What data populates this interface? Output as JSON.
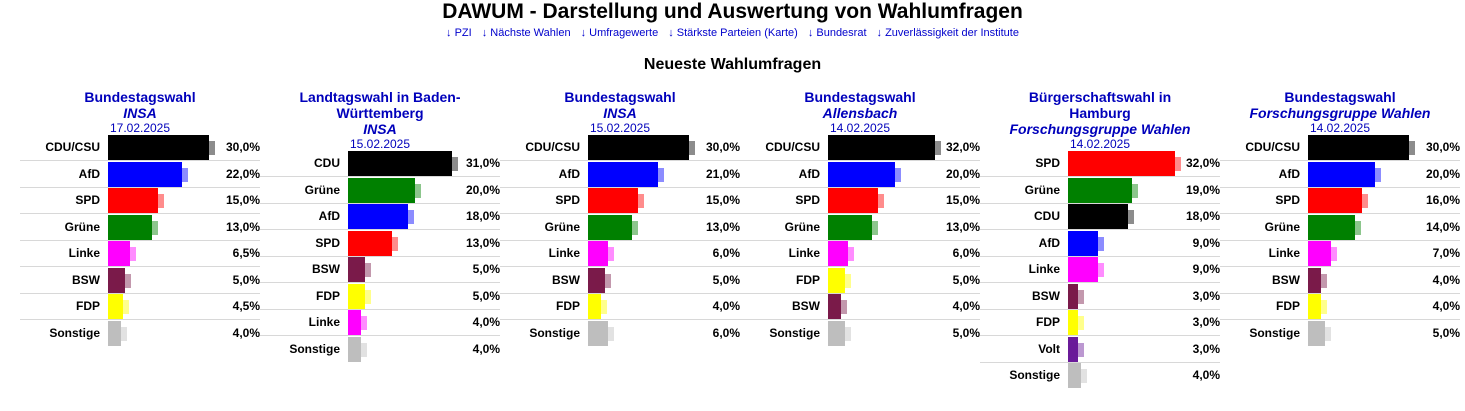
{
  "header": {
    "title": "DAWUM - Darstellung und Auswertung von Wahlumfragen"
  },
  "nav": [
    "↓ PZI",
    "↓ Nächste Wahlen",
    "↓ Umfragewerte",
    "↓ Stärkste Parteien (Karte)",
    "↓ Bundesrat",
    "↓ Zuverlässigkeit der Institute"
  ],
  "section_title": "Neueste Wahlumfragen",
  "colors": {
    "CDU/CSU": "#000000",
    "CDU": "#000000",
    "AfD": "#0000ff",
    "SPD": "#ff0000",
    "Grüne": "#008000",
    "Linke": "#ff00ff",
    "BSW": "#7a1a4a",
    "FDP": "#ffff00",
    "Volt": "#6a1b9a",
    "Sonstige": "#bebebe",
    "link": "#0000cc",
    "title": "#0000bb"
  },
  "polls": [
    {
      "title": "Bundestagswahl",
      "institute": "INSA",
      "date": "17.02.2025",
      "results": [
        {
          "party": "CDU/CSU",
          "value": "30,0%",
          "pct": 30.0
        },
        {
          "party": "AfD",
          "value": "22,0%",
          "pct": 22.0
        },
        {
          "party": "SPD",
          "value": "15,0%",
          "pct": 15.0
        },
        {
          "party": "Grüne",
          "value": "13,0%",
          "pct": 13.0
        },
        {
          "party": "Linke",
          "value": "6,5%",
          "pct": 6.5
        },
        {
          "party": "BSW",
          "value": "5,0%",
          "pct": 5.0
        },
        {
          "party": "FDP",
          "value": "4,5%",
          "pct": 4.5
        },
        {
          "party": "Sonstige",
          "value": "4,0%",
          "pct": 4.0
        }
      ]
    },
    {
      "title": "Landtagswahl in Baden-Württemberg",
      "institute": "INSA",
      "date": "15.02.2025",
      "results": [
        {
          "party": "CDU",
          "value": "31,0%",
          "pct": 31.0
        },
        {
          "party": "Grüne",
          "value": "20,0%",
          "pct": 20.0
        },
        {
          "party": "AfD",
          "value": "18,0%",
          "pct": 18.0
        },
        {
          "party": "SPD",
          "value": "13,0%",
          "pct": 13.0
        },
        {
          "party": "BSW",
          "value": "5,0%",
          "pct": 5.0
        },
        {
          "party": "FDP",
          "value": "5,0%",
          "pct": 5.0
        },
        {
          "party": "Linke",
          "value": "4,0%",
          "pct": 4.0
        },
        {
          "party": "Sonstige",
          "value": "4,0%",
          "pct": 4.0
        }
      ]
    },
    {
      "title": "Bundestagswahl",
      "institute": "INSA",
      "date": "15.02.2025",
      "results": [
        {
          "party": "CDU/CSU",
          "value": "30,0%",
          "pct": 30.0
        },
        {
          "party": "AfD",
          "value": "21,0%",
          "pct": 21.0
        },
        {
          "party": "SPD",
          "value": "15,0%",
          "pct": 15.0
        },
        {
          "party": "Grüne",
          "value": "13,0%",
          "pct": 13.0
        },
        {
          "party": "Linke",
          "value": "6,0%",
          "pct": 6.0
        },
        {
          "party": "BSW",
          "value": "5,0%",
          "pct": 5.0
        },
        {
          "party": "FDP",
          "value": "4,0%",
          "pct": 4.0
        },
        {
          "party": "Sonstige",
          "value": "6,0%",
          "pct": 6.0
        }
      ]
    },
    {
      "title": "Bundestagswahl",
      "institute": "Allensbach",
      "date": "14.02.2025",
      "results": [
        {
          "party": "CDU/CSU",
          "value": "32,0%",
          "pct": 32.0
        },
        {
          "party": "AfD",
          "value": "20,0%",
          "pct": 20.0
        },
        {
          "party": "SPD",
          "value": "15,0%",
          "pct": 15.0
        },
        {
          "party": "Grüne",
          "value": "13,0%",
          "pct": 13.0
        },
        {
          "party": "Linke",
          "value": "6,0%",
          "pct": 6.0
        },
        {
          "party": "FDP",
          "value": "5,0%",
          "pct": 5.0
        },
        {
          "party": "BSW",
          "value": "4,0%",
          "pct": 4.0
        },
        {
          "party": "Sonstige",
          "value": "5,0%",
          "pct": 5.0
        }
      ]
    },
    {
      "title": "Bürgerschaftswahl in Hamburg",
      "institute": "Forschungsgruppe Wahlen",
      "date": "14.02.2025",
      "results": [
        {
          "party": "SPD",
          "value": "32,0%",
          "pct": 32.0
        },
        {
          "party": "Grüne",
          "value": "19,0%",
          "pct": 19.0
        },
        {
          "party": "CDU",
          "value": "18,0%",
          "pct": 18.0
        },
        {
          "party": "AfD",
          "value": "9,0%",
          "pct": 9.0
        },
        {
          "party": "Linke",
          "value": "9,0%",
          "pct": 9.0
        },
        {
          "party": "BSW",
          "value": "3,0%",
          "pct": 3.0
        },
        {
          "party": "FDP",
          "value": "3,0%",
          "pct": 3.0
        },
        {
          "party": "Volt",
          "value": "3,0%",
          "pct": 3.0
        },
        {
          "party": "Sonstige",
          "value": "4,0%",
          "pct": 4.0
        }
      ]
    },
    {
      "title": "Bundestagswahl",
      "institute": "Forschungsgruppe Wahlen",
      "date": "14.02.2025",
      "results": [
        {
          "party": "CDU/CSU",
          "value": "30,0%",
          "pct": 30.0
        },
        {
          "party": "AfD",
          "value": "20,0%",
          "pct": 20.0
        },
        {
          "party": "SPD",
          "value": "16,0%",
          "pct": 16.0
        },
        {
          "party": "Grüne",
          "value": "14,0%",
          "pct": 14.0
        },
        {
          "party": "Linke",
          "value": "7,0%",
          "pct": 7.0
        },
        {
          "party": "BSW",
          "value": "4,0%",
          "pct": 4.0
        },
        {
          "party": "FDP",
          "value": "4,0%",
          "pct": 4.0
        },
        {
          "party": "Sonstige",
          "value": "5,0%",
          "pct": 5.0
        }
      ]
    }
  ]
}
